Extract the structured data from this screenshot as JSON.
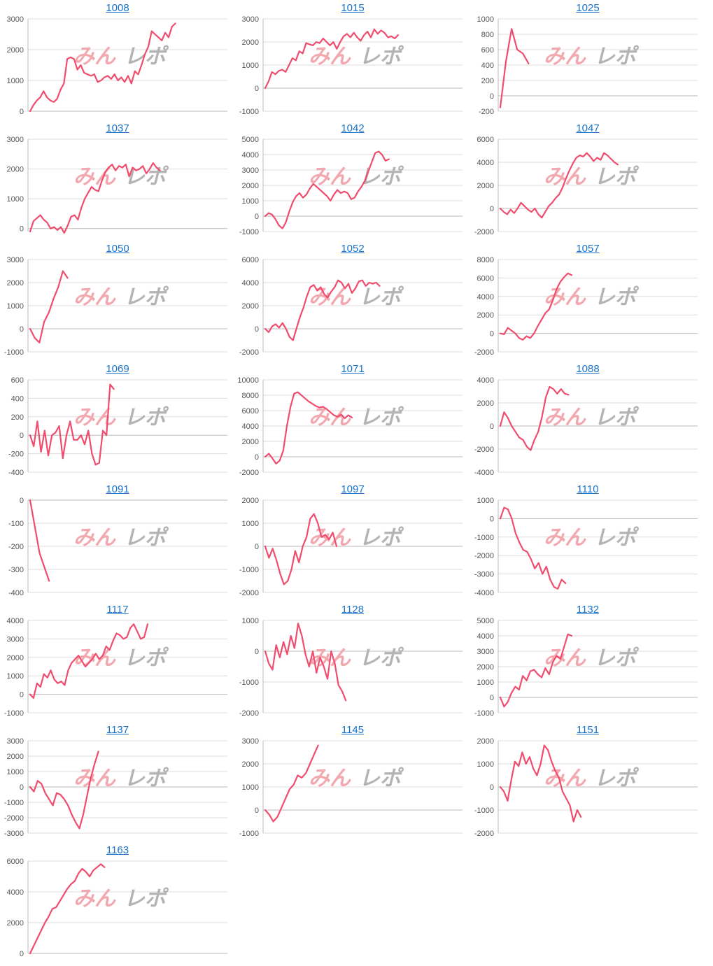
{
  "watermark": {
    "part1": "みん",
    "part2": "レポ",
    "color1": "#f2a8ae",
    "color2": "#b4b4b4"
  },
  "colors": {
    "line": "#f04d6e",
    "grid": "#dddddd",
    "axis": "#bbbbbb",
    "title": "#1a73c8",
    "tick": "#555555"
  },
  "chart_data": [
    {
      "type": "line",
      "title": "1008",
      "ylim": [
        0,
        3000
      ],
      "yticks": [
        0,
        1000,
        2000,
        3000
      ],
      "values": [
        0,
        200,
        350,
        450,
        650,
        450,
        350,
        300,
        400,
        700,
        900,
        1700,
        1750,
        1700,
        1350,
        1500,
        1250,
        1200,
        1150,
        1200,
        950,
        1000,
        1100,
        1150,
        1050,
        1200,
        1000,
        1100,
        950,
        1150,
        900,
        1300,
        1200,
        1500,
        1850,
        2100,
        2600,
        2500,
        2400,
        2300,
        2550,
        2400,
        2750,
        2850
      ]
    },
    {
      "type": "line",
      "title": "1015",
      "ylim": [
        -1000,
        3000
      ],
      "yticks": [
        -1000,
        0,
        1000,
        2000,
        3000
      ],
      "values": [
        0,
        300,
        700,
        600,
        750,
        800,
        700,
        1000,
        1300,
        1200,
        1600,
        1500,
        1950,
        1900,
        1850,
        2000,
        1950,
        2150,
        2000,
        1850,
        2000,
        1700,
        2000,
        2250,
        2350,
        2200,
        2400,
        2200,
        2050,
        2300,
        2450,
        2200,
        2550,
        2350,
        2500,
        2400,
        2200,
        2250,
        2150,
        2300
      ]
    },
    {
      "type": "line",
      "title": "1025",
      "ylim": [
        -200,
        1000
      ],
      "yticks": [
        -200,
        0,
        200,
        400,
        600,
        800,
        1000
      ],
      "values": [
        -150,
        450,
        870,
        600,
        550,
        420
      ]
    },
    {
      "type": "line",
      "title": "1037",
      "ylim": [
        -100,
        3000
      ],
      "yticks": [
        0,
        1000,
        2000,
        3000
      ],
      "values": [
        -100,
        250,
        350,
        450,
        300,
        200,
        0,
        50,
        -50,
        50,
        -150,
        100,
        400,
        450,
        300,
        700,
        1000,
        1200,
        1400,
        1300,
        1250,
        1600,
        1900,
        2050,
        2150,
        1950,
        2100,
        2050,
        2150,
        1750,
        2050,
        1950,
        2000,
        2100,
        1850,
        2000,
        2200,
        2050,
        1950
      ]
    },
    {
      "type": "line",
      "title": "1042",
      "ylim": [
        -1000,
        5000
      ],
      "yticks": [
        -1000,
        0,
        1000,
        2000,
        3000,
        4000,
        5000
      ],
      "values": [
        0,
        200,
        100,
        -200,
        -600,
        -800,
        -400,
        300,
        900,
        1300,
        1500,
        1200,
        1400,
        1800,
        2100,
        1900,
        1700,
        1500,
        1300,
        1000,
        1400,
        1700,
        1500,
        1600,
        1500,
        1100,
        1200,
        1600,
        1900,
        2300,
        2900,
        3500,
        4100,
        4200,
        4000,
        3600,
        3700
      ]
    },
    {
      "type": "line",
      "title": "1047",
      "ylim": [
        -2000,
        6000
      ],
      "yticks": [
        -2000,
        0,
        2000,
        4000,
        6000
      ],
      "values": [
        0,
        -300,
        -500,
        -100,
        -400,
        0,
        500,
        200,
        -100,
        -300,
        0,
        -500,
        -800,
        -300,
        200,
        500,
        900,
        1200,
        1800,
        2600,
        3300,
        3900,
        4400,
        4600,
        4500,
        4800,
        4500,
        4100,
        4400,
        4200,
        4800,
        4600,
        4300,
        4000,
        3800
      ]
    },
    {
      "type": "line",
      "title": "1050",
      "ylim": [
        -1000,
        3000
      ],
      "yticks": [
        -1000,
        0,
        1000,
        2000,
        3000
      ],
      "values": [
        0,
        -400,
        -600,
        300,
        700,
        1300,
        1800,
        2500,
        2200
      ]
    },
    {
      "type": "line",
      "title": "1052",
      "ylim": [
        -2000,
        6000
      ],
      "yticks": [
        -2000,
        0,
        2000,
        4000,
        6000
      ],
      "values": [
        0,
        -300,
        200,
        400,
        100,
        500,
        0,
        -700,
        -1000,
        0,
        1000,
        1800,
        2800,
        3600,
        3800,
        3300,
        3600,
        3000,
        2700,
        3200,
        3600,
        4200,
        4000,
        3500,
        3900,
        3100,
        3500,
        4100,
        4200,
        3700,
        4000,
        3900,
        4000,
        3700
      ]
    },
    {
      "type": "line",
      "title": "1057",
      "ylim": [
        -2000,
        8000
      ],
      "yticks": [
        -2000,
        0,
        2000,
        4000,
        6000,
        8000
      ],
      "values": [
        0,
        -100,
        600,
        300,
        0,
        -500,
        -700,
        -300,
        -500,
        0,
        800,
        1500,
        2200,
        2600,
        3600,
        4800,
        5600,
        6100,
        6500,
        6300
      ]
    },
    {
      "type": "line",
      "title": "1069",
      "ylim": [
        -400,
        600
      ],
      "yticks": [
        -400,
        -200,
        0,
        200,
        400,
        600
      ],
      "values": [
        0,
        -120,
        150,
        -180,
        50,
        -220,
        0,
        30,
        100,
        -250,
        0,
        150,
        -50,
        -50,
        0,
        -100,
        50,
        -200,
        -320,
        -300,
        50,
        0,
        550,
        500
      ]
    },
    {
      "type": "line",
      "title": "1071",
      "ylim": [
        -2000,
        10000
      ],
      "yticks": [
        -2000,
        0,
        2000,
        4000,
        6000,
        8000,
        10000
      ],
      "values": [
        0,
        400,
        -200,
        -900,
        -500,
        800,
        4000,
        6500,
        8200,
        8400,
        8000,
        7600,
        7200,
        6900,
        6600,
        6400,
        6500,
        6200,
        5800,
        5400,
        5200,
        5500,
        5000,
        5400,
        5100
      ]
    },
    {
      "type": "line",
      "title": "1088",
      "ylim": [
        -4000,
        4000
      ],
      "yticks": [
        -4000,
        -2000,
        0,
        2000,
        4000
      ],
      "values": [
        0,
        1200,
        700,
        0,
        -500,
        -1000,
        -1200,
        -1800,
        -2100,
        -1200,
        -500,
        800,
        2500,
        3400,
        3200,
        2800,
        3200,
        2800,
        2700
      ]
    },
    {
      "type": "line",
      "title": "1091",
      "ylim": [
        -400,
        0
      ],
      "yticks": [
        -400,
        -300,
        -200,
        -100,
        0
      ],
      "values": [
        0,
        -230,
        -350
      ]
    },
    {
      "type": "line",
      "title": "1097",
      "ylim": [
        -2000,
        2000
      ],
      "yticks": [
        -2000,
        -1000,
        0,
        1000,
        2000
      ],
      "values": [
        0,
        -500,
        -100,
        -600,
        -1200,
        -1650,
        -1500,
        -1000,
        -200,
        -700,
        0,
        400,
        1200,
        1400,
        1000,
        400,
        500,
        300,
        600,
        0
      ]
    },
    {
      "type": "line",
      "title": "1110",
      "ylim": [
        -4000,
        1000
      ],
      "yticks": [
        -4000,
        -3000,
        -2000,
        -1000,
        0,
        1000
      ],
      "values": [
        0,
        600,
        500,
        0,
        -800,
        -1300,
        -1700,
        -1800,
        -2200,
        -2700,
        -2400,
        -3000,
        -2600,
        -3300,
        -3700,
        -3800,
        -3300,
        -3500
      ]
    },
    {
      "type": "line",
      "title": "1117",
      "ylim": [
        -1000,
        4000
      ],
      "yticks": [
        -1000,
        0,
        1000,
        2000,
        3000,
        4000
      ],
      "values": [
        0,
        -200,
        600,
        400,
        1100,
        900,
        1300,
        800,
        600,
        700,
        500,
        1300,
        1700,
        1900,
        2100,
        1800,
        1500,
        1700,
        1900,
        2200,
        1900,
        2100,
        2600,
        2400,
        2900,
        3300,
        3200,
        3000,
        3100,
        3600,
        3800,
        3400,
        3000,
        3100,
        3800
      ]
    },
    {
      "type": "line",
      "title": "1128",
      "ylim": [
        -2000,
        1000
      ],
      "yticks": [
        -2000,
        -1000,
        0,
        1000
      ],
      "values": [
        0,
        -400,
        -600,
        200,
        -200,
        300,
        -100,
        500,
        100,
        900,
        500,
        -100,
        -500,
        0,
        -700,
        -200,
        -500,
        -900,
        0,
        -400,
        -1100,
        -1300,
        -1600
      ]
    },
    {
      "type": "line",
      "title": "1132",
      "ylim": [
        -1000,
        5000
      ],
      "yticks": [
        -1000,
        0,
        1000,
        2000,
        3000,
        4000,
        5000
      ],
      "values": [
        0,
        -600,
        -300,
        300,
        700,
        500,
        1400,
        1100,
        1700,
        1800,
        1500,
        1300,
        1900,
        1500,
        2300,
        2700,
        2500,
        3300,
        4100,
        4000
      ]
    },
    {
      "type": "line",
      "title": "1137",
      "ylim": [
        -3000,
        3000
      ],
      "yticks": [
        -3000,
        -2000,
        -1000,
        0,
        1000,
        2000,
        3000
      ],
      "values": [
        0,
        -300,
        400,
        200,
        -400,
        -800,
        -1200,
        -400,
        -500,
        -800,
        -1200,
        -1800,
        -2300,
        -2700,
        -1800,
        -600,
        600,
        1500,
        2300
      ]
    },
    {
      "type": "line",
      "title": "1145",
      "ylim": [
        -1000,
        3000
      ],
      "yticks": [
        -1000,
        0,
        1000,
        2000,
        3000
      ],
      "values": [
        0,
        -200,
        -500,
        -300,
        100,
        500,
        900,
        1100,
        1500,
        1400,
        1600,
        2000,
        2400,
        2800
      ]
    },
    {
      "type": "line",
      "title": "1151",
      "ylim": [
        -2000,
        2000
      ],
      "yticks": [
        -2000,
        -1000,
        0,
        1000,
        2000
      ],
      "values": [
        0,
        -200,
        -600,
        300,
        1100,
        900,
        1500,
        1000,
        1300,
        800,
        500,
        1000,
        1800,
        1600,
        1100,
        700,
        400,
        -200,
        -500,
        -800,
        -1500,
        -1000,
        -1300
      ]
    },
    {
      "type": "line",
      "title": "1163",
      "ylim": [
        0,
        6000
      ],
      "yticks": [
        0,
        2000,
        4000,
        6000
      ],
      "values": [
        0,
        500,
        1000,
        1500,
        2000,
        2400,
        2900,
        3000,
        3400,
        3800,
        4200,
        4500,
        4700,
        5200,
        5500,
        5300,
        5000,
        5400,
        5600,
        5800,
        5600
      ]
    }
  ]
}
